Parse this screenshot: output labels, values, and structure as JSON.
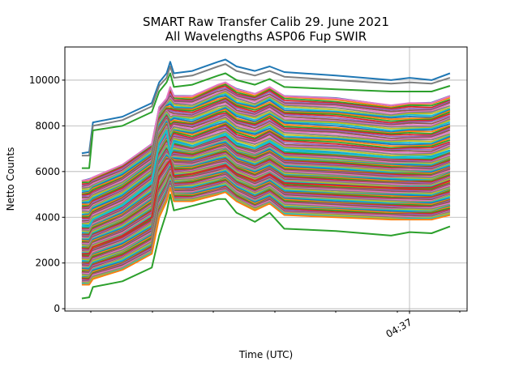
{
  "chart_data": {
    "type": "line",
    "title": "SMART Raw Transfer Calib 29. June 2021",
    "subtitle": "All Wavelengths ASP06 Fup SWIR",
    "xlabel": "Time (UTC)",
    "ylabel": "Netto Counts",
    "ylim": [
      -100,
      11450
    ],
    "yticks": [
      0,
      2000,
      4000,
      6000,
      8000,
      10000
    ],
    "xtick_labels": [
      "04:37"
    ],
    "xtick_values": [
      "04:37:00"
    ],
    "grid": true,
    "legend": "none",
    "colors": [
      "#1f77b4",
      "#ff7f0e",
      "#2ca02c",
      "#d62728",
      "#9467bd",
      "#8c564b",
      "#e377c2",
      "#7f7f7f",
      "#bcbd22",
      "#17becf"
    ],
    "x": [
      "04:35:31",
      "04:35:33",
      "04:35:34",
      "04:35:42",
      "04:35:50",
      "04:35:52",
      "04:35:54",
      "04:35:55",
      "04:35:56",
      "04:36:01",
      "04:36:08",
      "04:36:10",
      "04:36:13",
      "04:36:18",
      "04:36:22",
      "04:36:26",
      "04:36:40",
      "04:36:55",
      "04:37:00",
      "04:37:06",
      "04:37:11"
    ],
    "series": [
      {
        "color": "#1f77b4",
        "values": [
          6800,
          6850,
          8150,
          8400,
          9000,
          9900,
          10300,
          10800,
          10300,
          10400,
          10800,
          10900,
          10600,
          10400,
          10600,
          10350,
          10200,
          10000,
          10100,
          10000,
          10300
        ]
      },
      {
        "color": "#7f7f7f",
        "values": [
          6700,
          6700,
          8000,
          8250,
          8850,
          9750,
          10100,
          10600,
          10100,
          10200,
          10600,
          10700,
          10400,
          10200,
          10400,
          10150,
          10000,
          9850,
          9900,
          9850,
          10100
        ]
      },
      {
        "color": "#2ca02c",
        "values": [
          6150,
          6150,
          7800,
          8000,
          8600,
          9500,
          9900,
          10300,
          9700,
          9800,
          10200,
          10300,
          10000,
          9800,
          10050,
          9700,
          9600,
          9500,
          9500,
          9500,
          9750
        ]
      },
      {
        "color": "#e377c2",
        "values": [
          5600,
          5650,
          5750,
          6300,
          7200,
          8800,
          9200,
          9700,
          9300,
          9300,
          9800,
          9900,
          9600,
          9400,
          9700,
          9300,
          9200,
          8900,
          9000,
          9000,
          9300
        ]
      },
      {
        "color": "#17becf",
        "values": [
          3600,
          3600,
          3900,
          4500,
          5500,
          7200,
          7800,
          6700,
          7300,
          7100,
          7500,
          7600,
          7200,
          7000,
          7300,
          6900,
          6800,
          6600,
          6600,
          6600,
          6900
        ]
      },
      {
        "color": "#d62728",
        "values": [
          2400,
          2400,
          2700,
          3200,
          4000,
          5800,
          6300,
          6500,
          5800,
          5900,
          6200,
          6300,
          5900,
          5600,
          5900,
          5500,
          5400,
          5300,
          5300,
          5300,
          5600
        ]
      },
      {
        "color": "#ff7f0e",
        "values": [
          1050,
          1050,
          1300,
          1700,
          2400,
          4000,
          4700,
          5300,
          4700,
          4700,
          5000,
          5100,
          4700,
          4300,
          4600,
          4100,
          4000,
          3900,
          3900,
          3900,
          4100
        ]
      },
      {
        "color": "#2ca02c",
        "values": [
          450,
          500,
          950,
          1200,
          1800,
          3200,
          4200,
          5000,
          4300,
          4500,
          4800,
          4800,
          4200,
          3800,
          4200,
          3500,
          3400,
          3200,
          3350,
          3300,
          3600
        ]
      }
    ]
  }
}
